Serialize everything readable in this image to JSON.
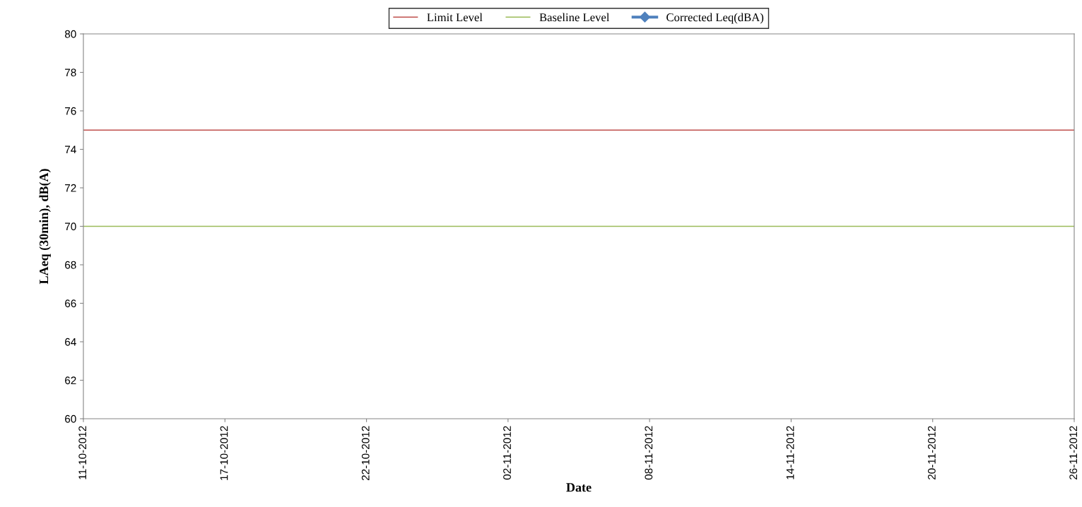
{
  "chart_data": {
    "type": "line",
    "xlabel": "Date",
    "ylabel": "LAeq (30min), dB(A)",
    "categories": [
      "11-10-2012",
      "17-10-2012",
      "22-10-2012",
      "02-11-2012",
      "08-11-2012",
      "14-11-2012",
      "20-11-2012",
      "26-11-2012"
    ],
    "series": [
      {
        "name": "Limit Level",
        "color": "#c0504d",
        "values": [
          75,
          75,
          75,
          75,
          75,
          75,
          75,
          75
        ],
        "marker": "none"
      },
      {
        "name": "Baseline Level",
        "color": "#9bbb59",
        "values": [
          70,
          70,
          70,
          70,
          70,
          70,
          70,
          70
        ],
        "marker": "none"
      },
      {
        "name": "Corrected Leq(dBA)",
        "color": "#4f81bd",
        "values": [
          null,
          null,
          null,
          null,
          null,
          null,
          null,
          null
        ],
        "marker": "diamond"
      }
    ],
    "ylim": [
      60,
      80
    ],
    "yticks": [
      60,
      62,
      64,
      66,
      68,
      70,
      72,
      74,
      76,
      78,
      80
    ],
    "grid": false,
    "legend": "top"
  }
}
